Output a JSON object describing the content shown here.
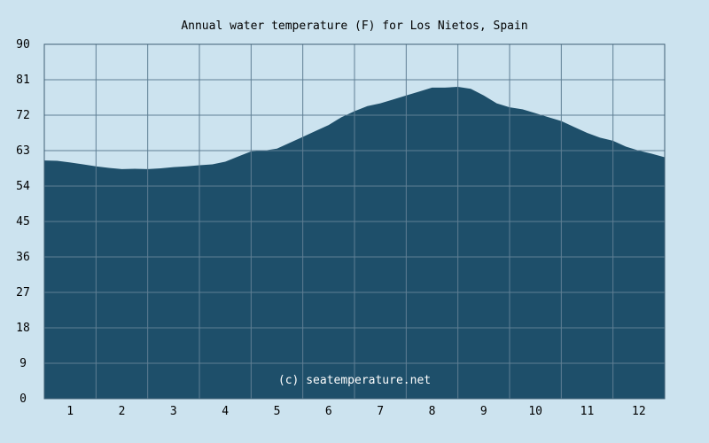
{
  "chart_data": {
    "type": "area",
    "title": "Annual water temperature (F) for Los Nietos, Spain",
    "xlabel": "",
    "ylabel": "",
    "ylim": [
      0,
      90
    ],
    "yticks": [
      0,
      9,
      18,
      27,
      36,
      45,
      54,
      63,
      72,
      81,
      90
    ],
    "xlim": [
      0.5,
      12.5
    ],
    "xticks": [
      1,
      2,
      3,
      4,
      5,
      6,
      7,
      8,
      9,
      10,
      11,
      12
    ],
    "grid": true,
    "colors": {
      "fill": "#1e4f6a",
      "background": "#cce3ef",
      "grid": "#5f7f94",
      "border": "#3f5f74"
    },
    "series": [
      {
        "x": [
          0.5,
          0.75,
          1.0,
          1.25,
          1.5,
          1.75,
          2.0,
          2.25,
          2.5,
          2.75,
          3.0,
          3.25,
          3.5,
          3.75,
          4.0,
          4.25,
          4.5,
          4.75,
          5.0,
          5.25,
          5.5,
          5.75,
          6.0,
          6.25,
          6.5,
          6.75,
          7.0,
          7.25,
          7.5,
          7.75,
          8.0,
          8.25,
          8.5,
          8.75,
          9.0,
          9.25,
          9.5,
          9.75,
          10.0,
          10.25,
          10.5,
          10.75,
          11.0,
          11.25,
          11.5,
          11.75,
          12.0,
          12.25,
          12.5
        ],
        "values": [
          60.5,
          60.4,
          60.0,
          59.5,
          59.0,
          58.6,
          58.3,
          58.4,
          58.3,
          58.5,
          58.8,
          59.0,
          59.3,
          59.5,
          60.2,
          61.5,
          62.8,
          63.0,
          63.5,
          65.0,
          66.5,
          68.0,
          69.5,
          71.5,
          73.0,
          74.3,
          75.0,
          76.0,
          77.0,
          78.0,
          79.0,
          79.0,
          79.2,
          78.7,
          77.0,
          75.0,
          74.0,
          73.5,
          72.5,
          71.5,
          70.5,
          69.0,
          67.5,
          66.3,
          65.5,
          64.0,
          63.0,
          62.2,
          61.3
        ]
      }
    ],
    "watermark": "(c) seatemperature.net"
  }
}
